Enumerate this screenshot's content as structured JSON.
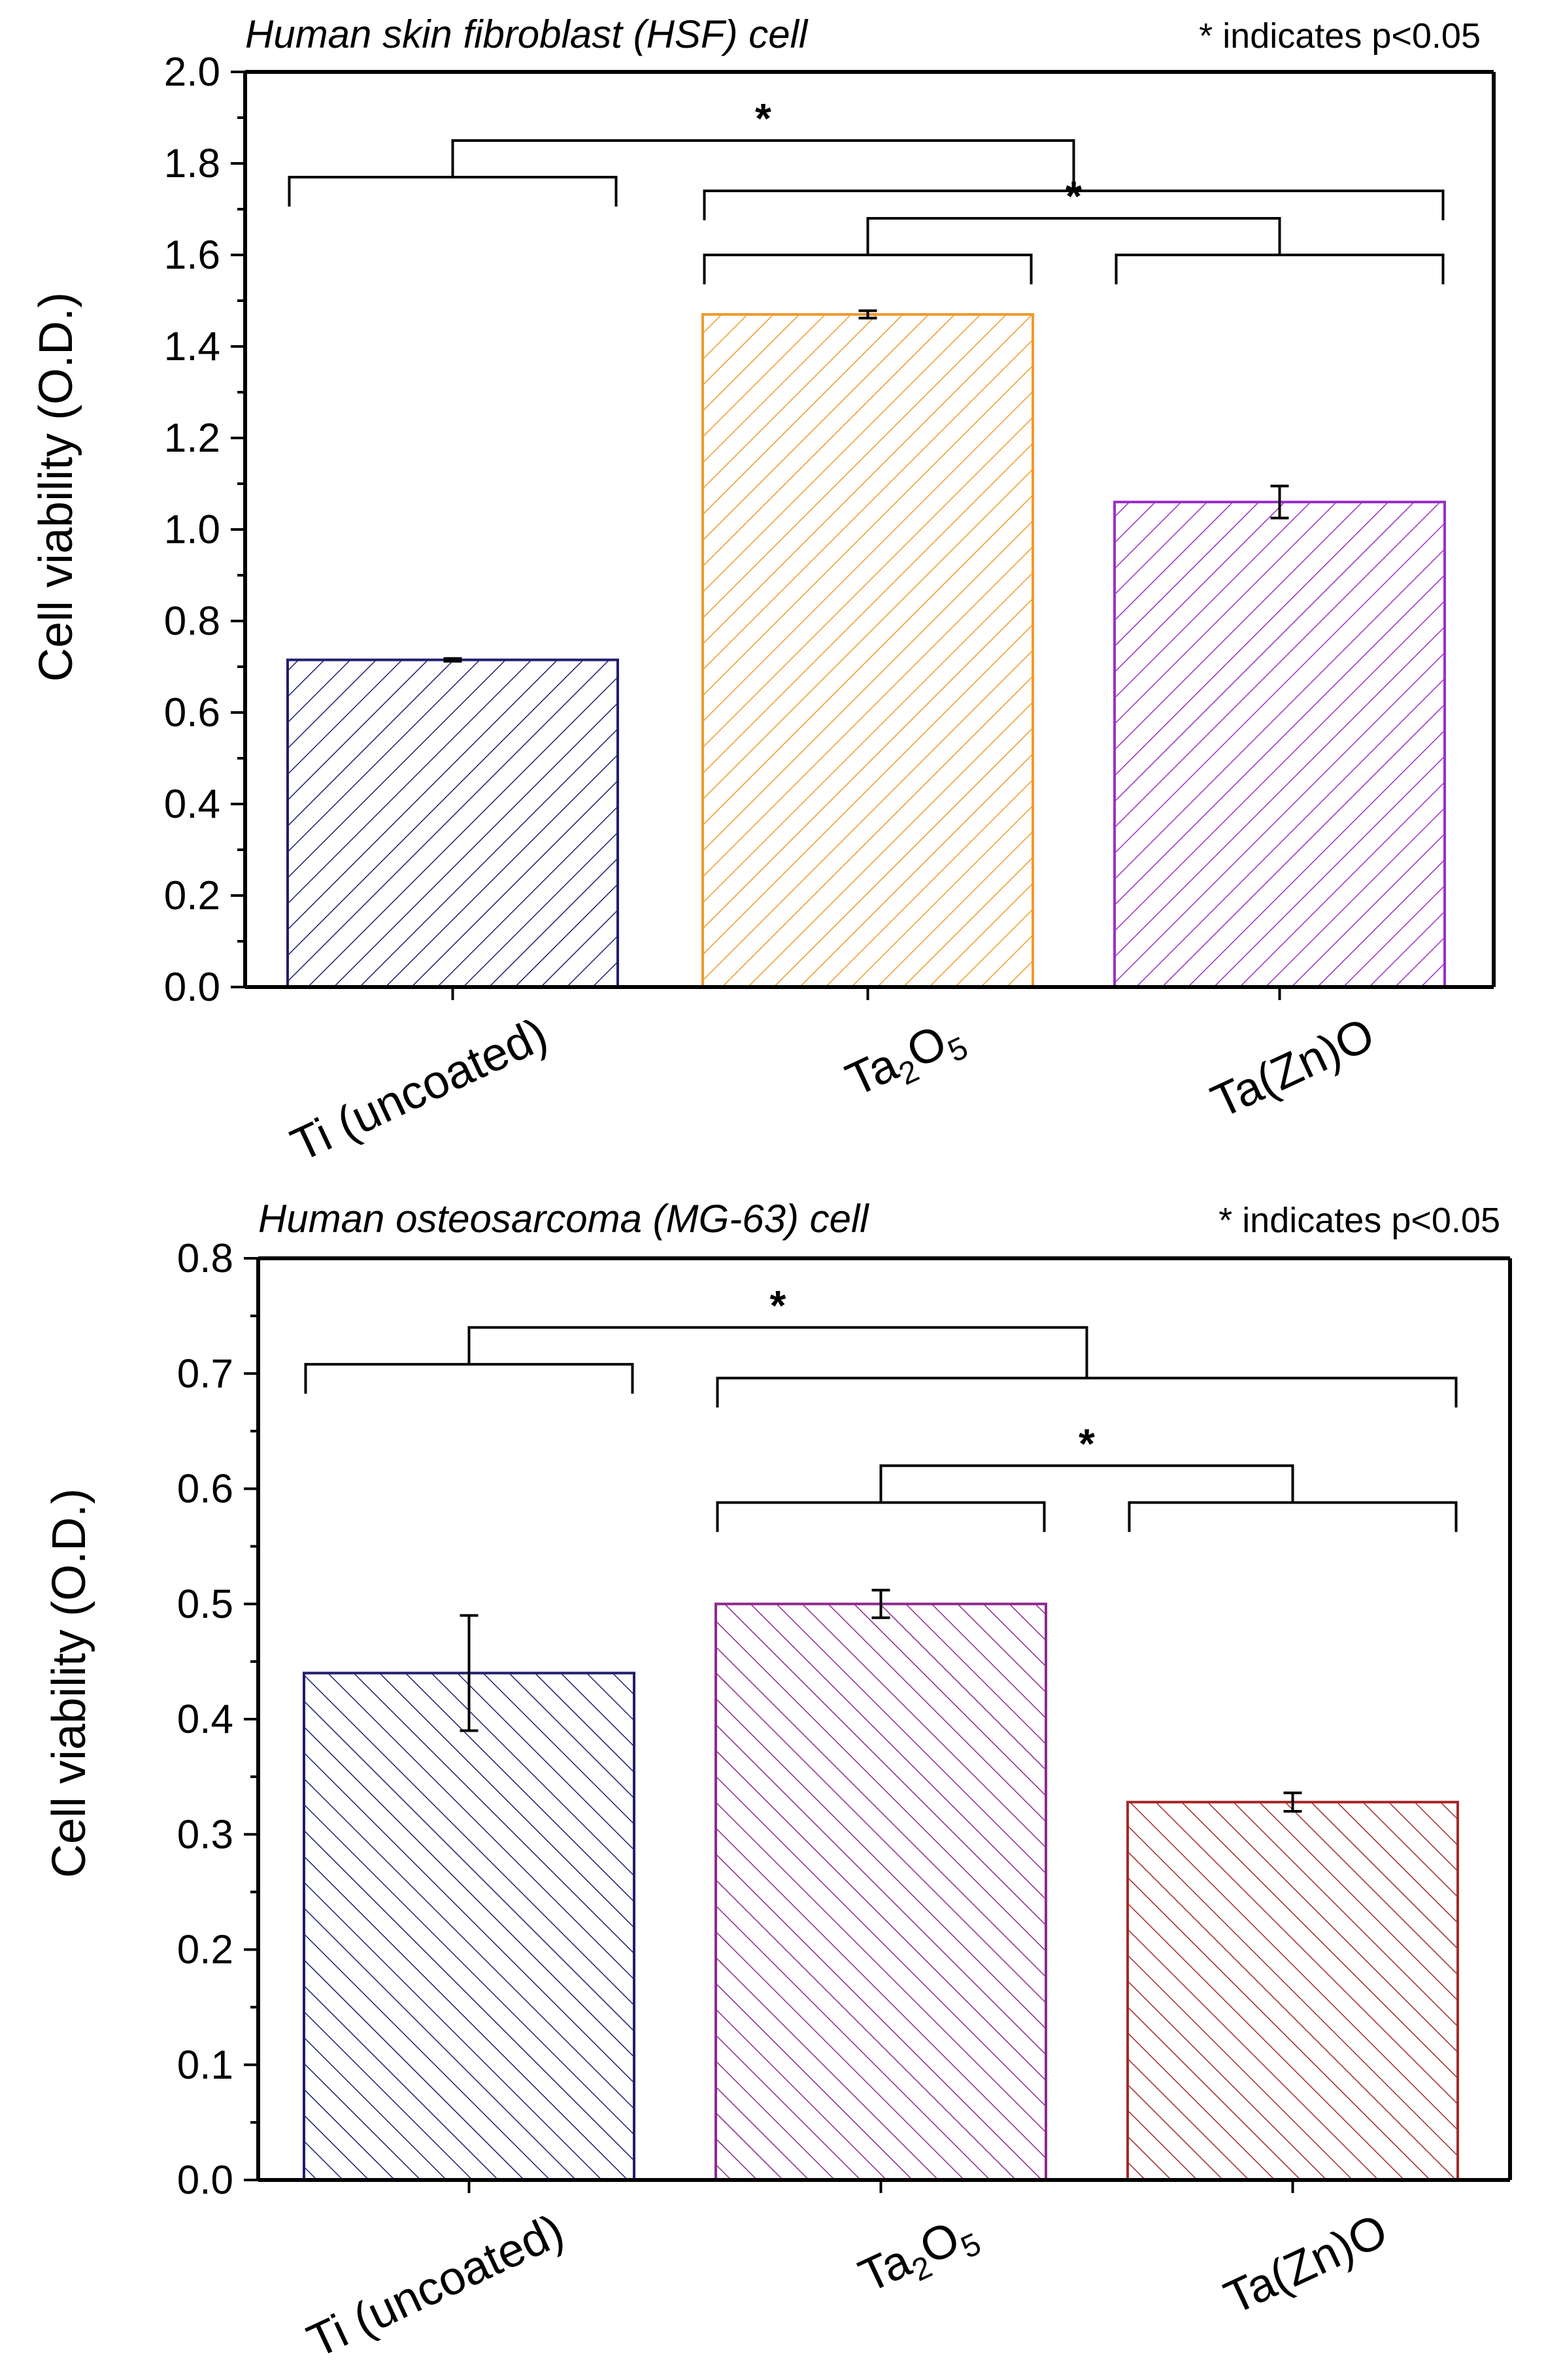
{
  "chart_data": [
    {
      "type": "bar",
      "title": "Human skin fibroblast (HSF) cell",
      "note": "* indicates p<0.05",
      "xlabel": "",
      "ylabel": "Cell viability (O.D.)",
      "ylim": [
        0.0,
        2.0
      ],
      "yticks": [
        "0.0",
        "0.2",
        "0.4",
        "0.6",
        "0.8",
        "1.0",
        "1.2",
        "1.4",
        "1.6",
        "1.8",
        "2.0"
      ],
      "categories": [
        {
          "label": "Ti (uncoated)"
        },
        {
          "label": "Ta",
          "sub1": "2",
          "mid": "O",
          "sub2": "5"
        },
        {
          "label": "Ta(Zn)O"
        }
      ],
      "values": [
        0.715,
        1.47,
        1.06
      ],
      "errors": [
        0.003,
        0.008,
        0.035
      ],
      "colors": [
        "#1f1f6e",
        "#ef9a2c",
        "#9b30c8"
      ],
      "significance": [
        {
          "groups": [
            0,
            [
              1,
              2
            ]
          ],
          "label": "*",
          "level": 1.85
        },
        {
          "groups": [
            1,
            2
          ],
          "label": "*",
          "level": 1.68
        }
      ]
    },
    {
      "type": "bar",
      "title": "Human osteosarcoma (MG-63) cell",
      "note": "* indicates p<0.05",
      "xlabel": "",
      "ylabel": "Cell viability (O.D.)",
      "ylim": [
        0.0,
        0.8
      ],
      "yticks": [
        "0.0",
        "0.1",
        "0.2",
        "0.3",
        "0.4",
        "0.5",
        "0.6",
        "0.7",
        "0.8"
      ],
      "categories": [
        {
          "label": "Ti (uncoated)"
        },
        {
          "label": "Ta",
          "sub1": "2",
          "mid": "O",
          "sub2": "5"
        },
        {
          "label": "Ta(Zn)O"
        }
      ],
      "values": [
        0.44,
        0.5,
        0.328
      ],
      "errors": [
        0.05,
        0.012,
        0.008
      ],
      "colors": [
        "#1f1f6e",
        "#8e2b8e",
        "#a52a2a"
      ],
      "significance": [
        {
          "groups": [
            0,
            [
              1,
              2
            ]
          ],
          "label": "*",
          "level": 0.74
        },
        {
          "groups": [
            1,
            2
          ],
          "label": "*",
          "level": 0.62
        }
      ]
    }
  ]
}
